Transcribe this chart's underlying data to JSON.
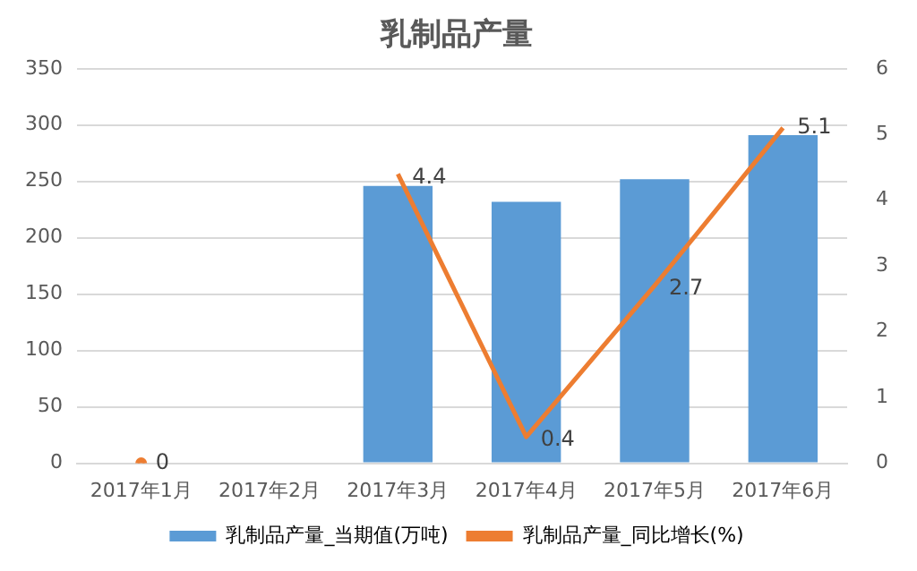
{
  "chart_data": {
    "type": "bar",
    "title": "乳制品产量",
    "categories": [
      "2017年1月",
      "2017年2月",
      "2017年3月",
      "2017年4月",
      "2017年5月",
      "2017年6月"
    ],
    "series": [
      {
        "name": "乳制品产量_当期值(万吨)",
        "color": "#5b9bd5",
        "values": [
          null,
          null,
          246,
          232,
          252,
          291
        ]
      },
      {
        "name": "乳制品产量_同比增长(%)",
        "type": "line",
        "axis": "y2",
        "color": "#ed7d31",
        "values": [
          0,
          null,
          4.4,
          0.4,
          2.7,
          5.1
        ],
        "value_labels": [
          "0",
          null,
          "4.4",
          "0.4",
          "2.7",
          "5.1"
        ]
      }
    ],
    "ylim": [
      0,
      350
    ],
    "yticks": [
      0,
      50,
      100,
      150,
      200,
      250,
      300,
      350
    ],
    "y2lim": [
      0,
      6
    ],
    "y2ticks": [
      0,
      1,
      2,
      3,
      4,
      5,
      6
    ],
    "grid": "y",
    "legend": "bottom",
    "marker": "none"
  }
}
